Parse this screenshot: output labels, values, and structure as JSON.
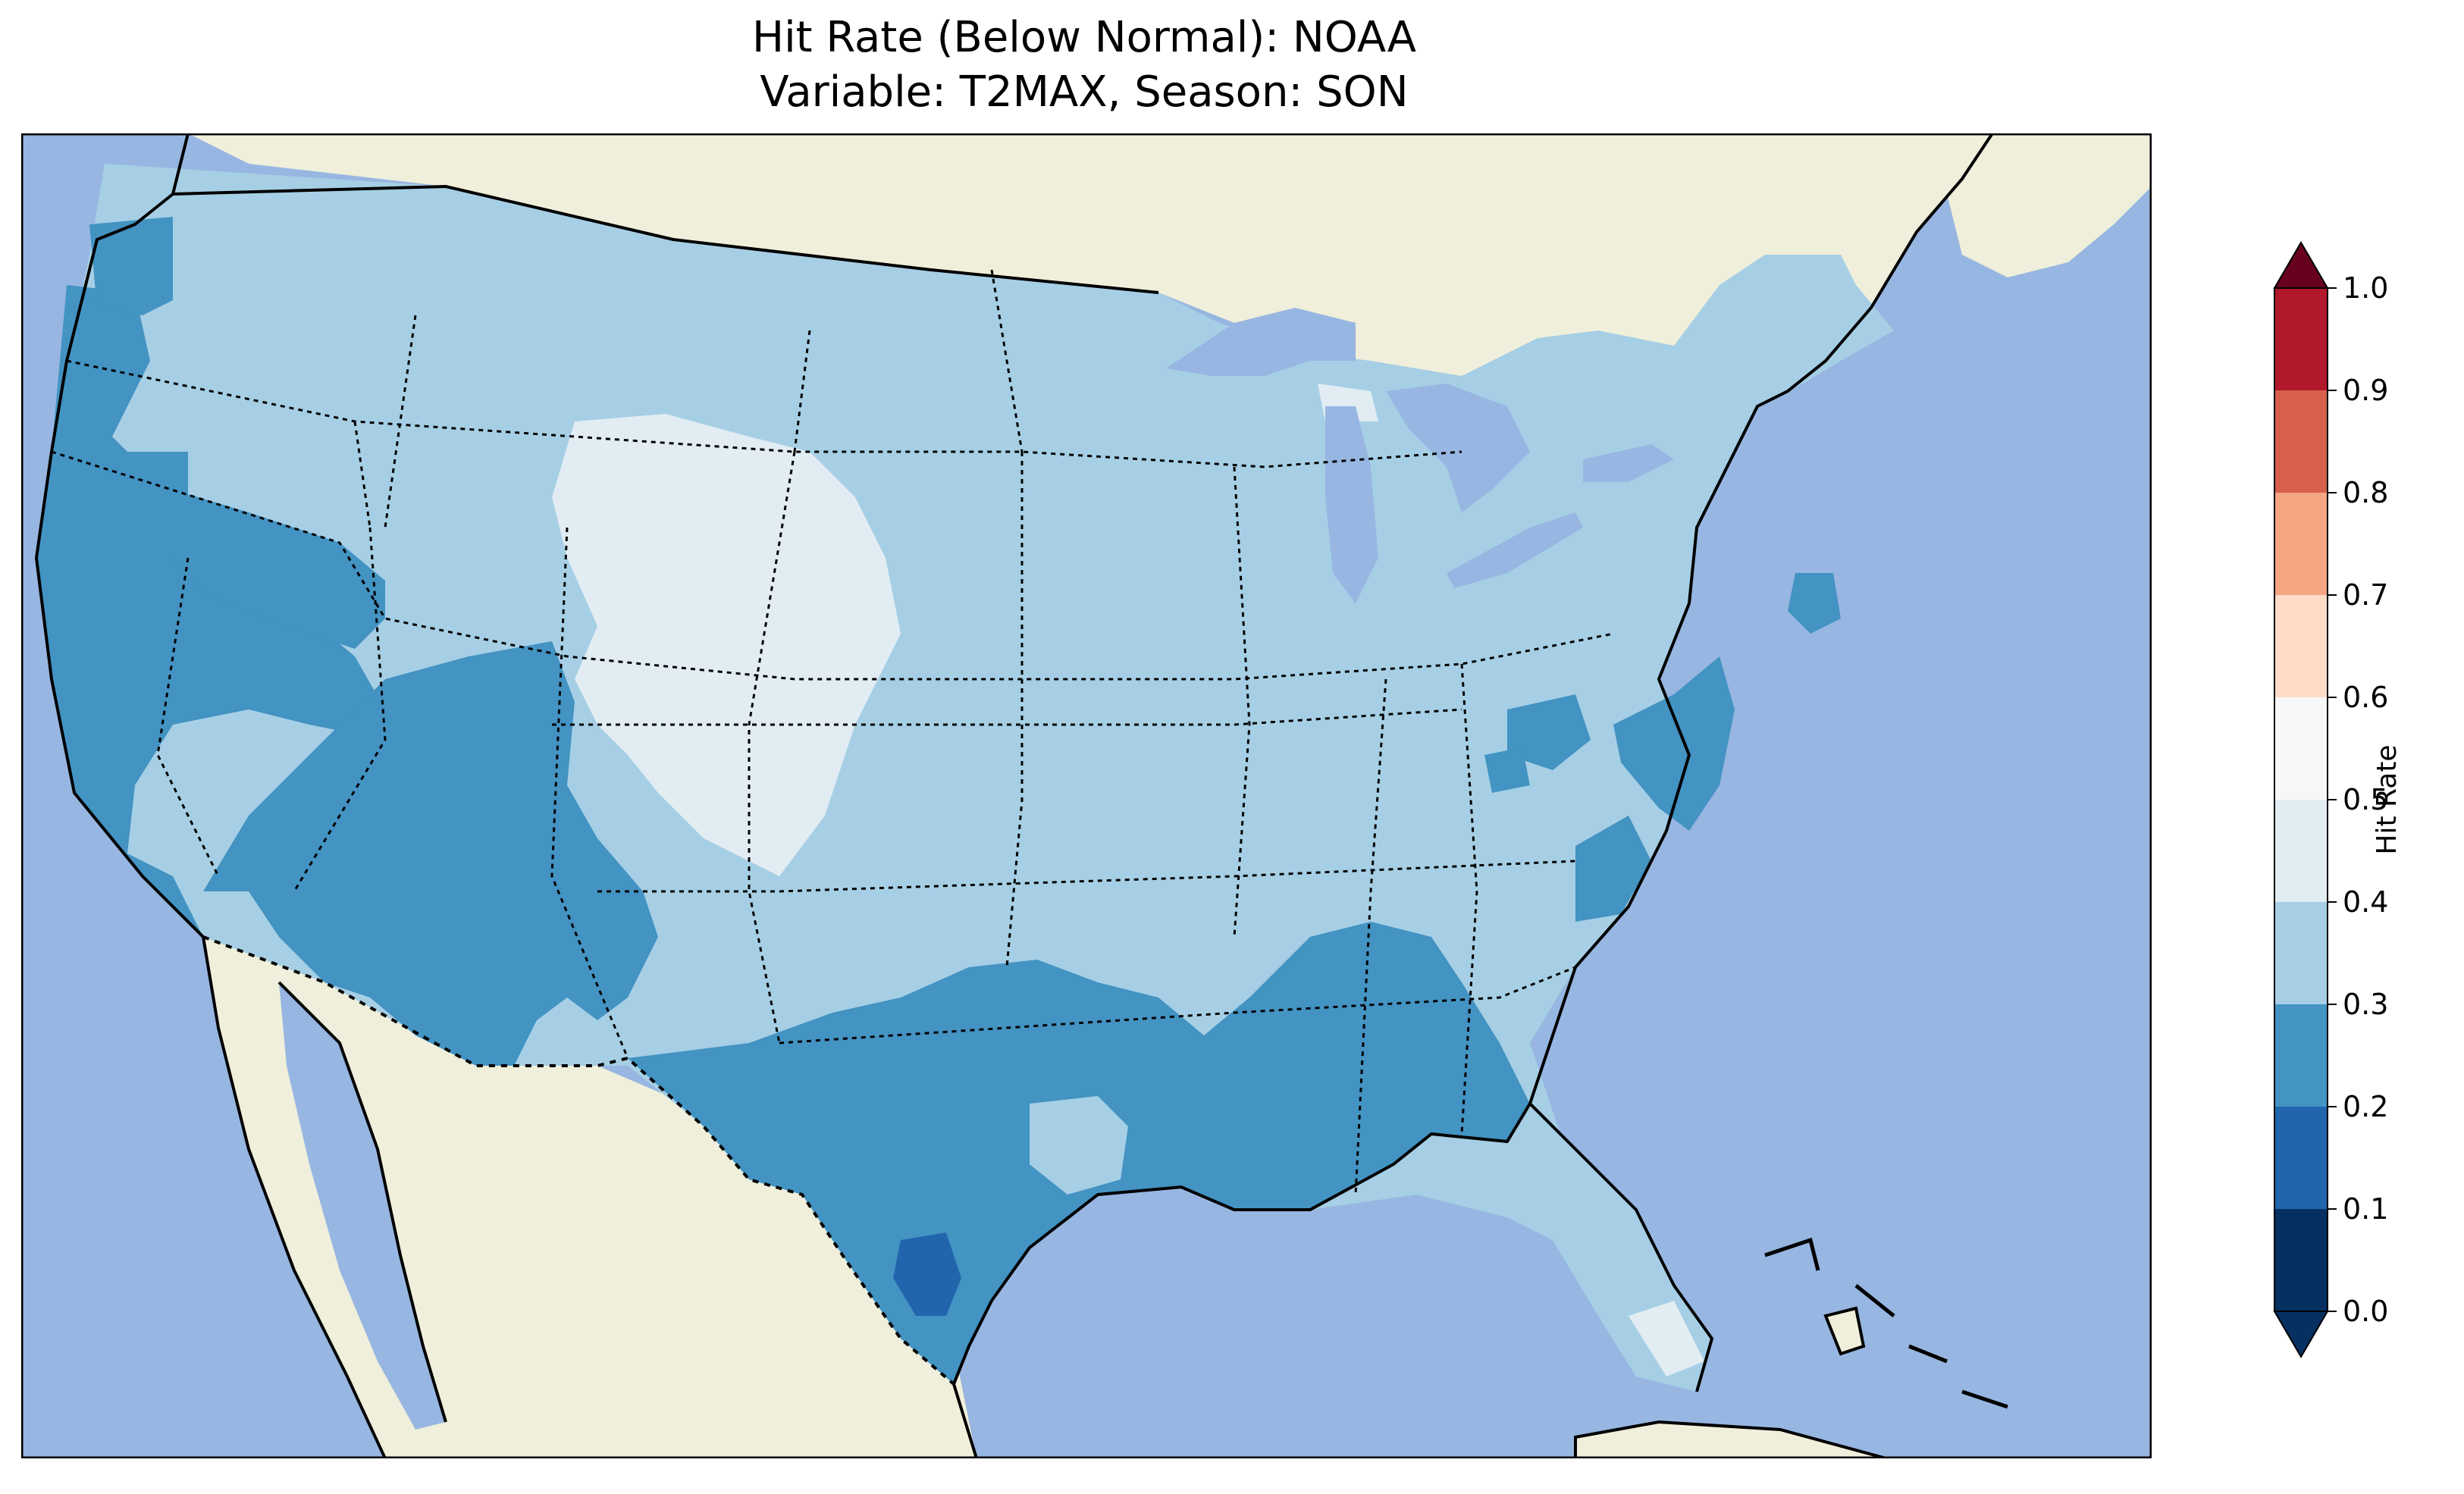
{
  "title_line1": "Hit Rate (Below Normal): NOAA",
  "title_line2": "Variable: T2MAX, Season: SON",
  "colorbar": {
    "label": "Hit Rate",
    "ticks": [
      "0.0",
      "0.1",
      "0.2",
      "0.3",
      "0.4",
      "0.5",
      "0.6",
      "0.7",
      "0.8",
      "0.9",
      "1.0"
    ],
    "colors": [
      "#053061",
      "#2166ac",
      "#4393c3",
      "#92c5de",
      "#d1e5f0",
      "#f7f7f7",
      "#fddbc7",
      "#f4a582",
      "#d6604d",
      "#b2182b",
      "#67001f"
    ],
    "extend": "both"
  },
  "map": {
    "ocean_color": "#97b6e1",
    "land_color": "#efefdb",
    "legend_bins": [
      {
        "range": "0.1-0.2",
        "color": "#2166ac"
      },
      {
        "range": "0.2-0.3",
        "color": "#4393c3"
      },
      {
        "range": "0.3-0.4",
        "color": "#a6cfe5"
      },
      {
        "range": "0.4-0.5",
        "color": "#e1ecf3"
      }
    ]
  }
}
